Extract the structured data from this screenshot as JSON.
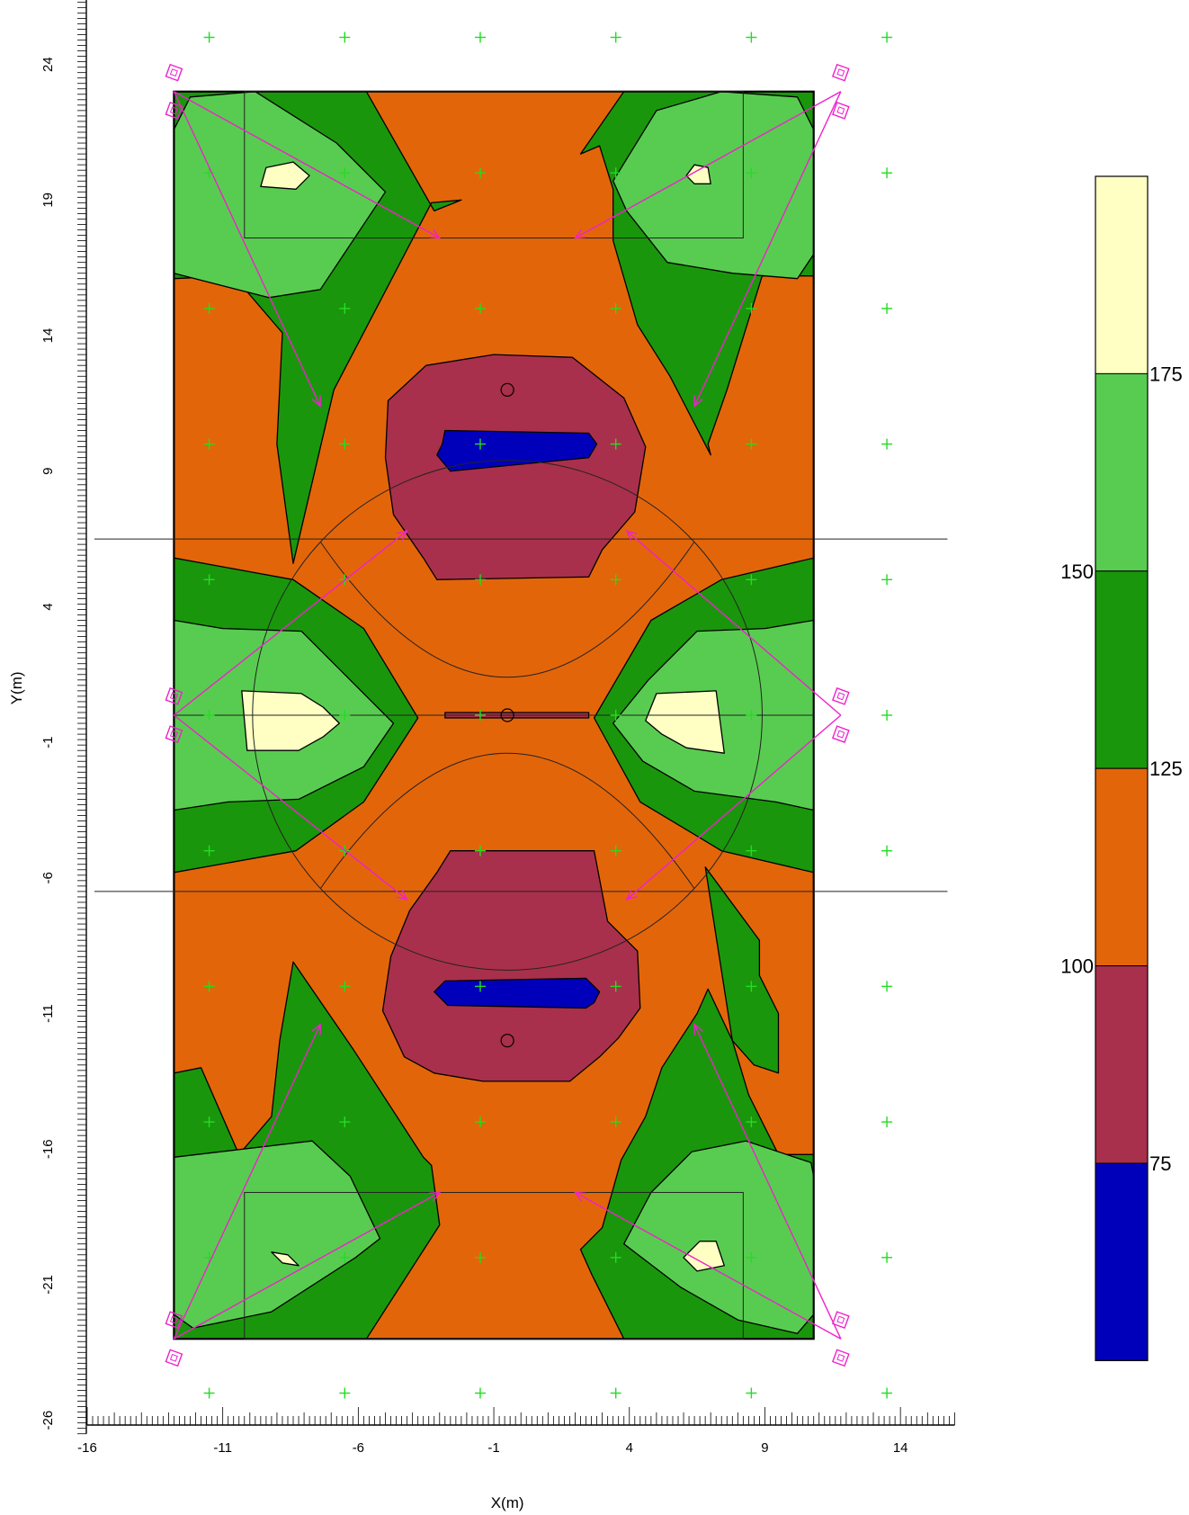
{
  "chart_data": {
    "type": "heatmap",
    "subtype": "filled-contour illuminance plot over sports field",
    "xlabel": "X(m)",
    "ylabel": "Y(m)",
    "xlim": [
      -16,
      16
    ],
    "ylim": [
      -26.5,
      26.5
    ],
    "x_ticks": [
      -16,
      -11,
      -6,
      -1,
      4,
      9,
      14
    ],
    "y_ticks": [
      24,
      19,
      14,
      9,
      4,
      -1,
      -6,
      -11,
      -16,
      -21,
      -26
    ],
    "field": {
      "x": [
        -12.8,
        10.8
      ],
      "y": [
        -23,
        23
      ]
    },
    "legend": {
      "placement": "right",
      "labels": [
        "175",
        "150",
        "125",
        "100",
        "75"
      ],
      "bands": [
        {
          "color": "#0000bb",
          "range": [
            50,
            75
          ]
        },
        {
          "color": "#a8304c",
          "range": [
            75,
            100
          ]
        },
        {
          "color": "#e3650a",
          "range": [
            100,
            125
          ]
        },
        {
          "color": "#1a960c",
          "range": [
            125,
            150
          ]
        },
        {
          "color": "#58cc50",
          "range": [
            150,
            175
          ]
        },
        {
          "color": "#ffffc4",
          "range": [
            175,
            200
          ]
        }
      ]
    },
    "contours": [
      {
        "level": 125,
        "color": "#1a960c",
        "polygons": [
          [
            [
              -12.8,
              23
            ],
            [
              -5.7,
              23
            ],
            [
              -3.2,
              18.6
            ],
            [
              -2.2,
              19
            ],
            [
              -3.3,
              18.9
            ],
            [
              -6.9,
              12
            ],
            [
              -8.4,
              5.6
            ],
            [
              -9,
              10
            ],
            [
              -8.8,
              14.1
            ],
            [
              -10.6,
              16.2
            ],
            [
              -12.8,
              16.1
            ]
          ],
          [
            [
              3.8,
              23
            ],
            [
              10.8,
              23
            ],
            [
              10.8,
              16.2
            ],
            [
              8.9,
              16.2
            ],
            [
              7.6,
              12
            ],
            [
              6.9,
              10
            ],
            [
              7,
              9.6
            ],
            [
              5.5,
              12.5
            ],
            [
              4.3,
              14.4
            ],
            [
              3.4,
              17.5
            ],
            [
              3.4,
              19.4
            ],
            [
              2.9,
              21
            ],
            [
              2.2,
              20.7
            ]
          ],
          [
            [
              -12.8,
              5.8
            ],
            [
              -8.4,
              5
            ],
            [
              -5.8,
              3.2
            ],
            [
              -3.8,
              -0.1
            ],
            [
              -5.8,
              -3.2
            ],
            [
              -8.3,
              -5
            ],
            [
              -12.8,
              -5.8
            ]
          ],
          [
            [
              10.8,
              5.8
            ],
            [
              7.4,
              5
            ],
            [
              4.8,
              3.5
            ],
            [
              2.7,
              -0.1
            ],
            [
              4.4,
              -3.2
            ],
            [
              7.4,
              -5
            ],
            [
              10.8,
              -5.8
            ]
          ],
          [
            [
              -12.8,
              -23
            ],
            [
              -5.7,
              -23
            ],
            [
              -3,
              -18.8
            ],
            [
              -3.3,
              -16.6
            ],
            [
              -3.6,
              -16.3
            ],
            [
              -6.2,
              -12.3
            ],
            [
              -8.4,
              -9.1
            ],
            [
              -8.9,
              -12
            ],
            [
              -9.2,
              -14.8
            ],
            [
              -10.4,
              -16.2
            ],
            [
              -11.8,
              -13
            ],
            [
              -12.8,
              -13.2
            ]
          ],
          [
            [
              3.8,
              -23
            ],
            [
              10.8,
              -23
            ],
            [
              10.8,
              -16.2
            ],
            [
              9.5,
              -16.2
            ],
            [
              8.4,
              -14
            ],
            [
              7.8,
              -12
            ],
            [
              6.9,
              -10.1
            ],
            [
              6.5,
              -11
            ],
            [
              5.2,
              -13
            ],
            [
              4.6,
              -14.8
            ],
            [
              3.7,
              -16.4
            ],
            [
              3,
              -18.9
            ],
            [
              2.2,
              -19.7
            ],
            [
              2.6,
              -20.6
            ]
          ],
          [
            [
              6.8,
              -5.6
            ],
            [
              8.8,
              -8.3
            ],
            [
              8.8,
              -9.6
            ],
            [
              9.5,
              -11
            ],
            [
              9.5,
              -13.2
            ],
            [
              8.6,
              -12.9
            ],
            [
              7.8,
              -12
            ]
          ]
        ]
      },
      {
        "level": 150,
        "color": "#58cc50",
        "polygons": [
          [
            [
              -12.8,
              21.6
            ],
            [
              -12.2,
              22.8
            ],
            [
              -9.8,
              23
            ],
            [
              -6.8,
              21.1
            ],
            [
              -5,
              19.3
            ],
            [
              -7.4,
              15.7
            ],
            [
              -9.3,
              15.4
            ],
            [
              -12.8,
              16.3
            ]
          ],
          [
            [
              10.8,
              21.6
            ],
            [
              10.2,
              22.8
            ],
            [
              7.4,
              23
            ],
            [
              5,
              22.3
            ],
            [
              3.4,
              19.7
            ],
            [
              3.9,
              18.6
            ],
            [
              5.4,
              16.7
            ],
            [
              7.8,
              16.3
            ],
            [
              10.2,
              16.1
            ],
            [
              10.8,
              17
            ]
          ],
          [
            [
              -12.8,
              3.5
            ],
            [
              -11,
              3.2
            ],
            [
              -8.1,
              3.1
            ],
            [
              -5.9,
              0.9
            ],
            [
              -4.7,
              -0.3
            ],
            [
              -5.8,
              -1.9
            ],
            [
              -8.2,
              -3.1
            ],
            [
              -10.8,
              -3.2
            ],
            [
              -12.8,
              -3.5
            ]
          ],
          [
            [
              10.8,
              3.5
            ],
            [
              9,
              3.2
            ],
            [
              6.5,
              3.1
            ],
            [
              4.7,
              1.3
            ],
            [
              3.4,
              -0.3
            ],
            [
              4.5,
              -1.7
            ],
            [
              6.4,
              -2.8
            ],
            [
              9.4,
              -3.2
            ],
            [
              10.8,
              -3.5
            ]
          ],
          [
            [
              -12.8,
              -22.1
            ],
            [
              -12.1,
              -22.6
            ],
            [
              -9.2,
              -22
            ],
            [
              -6.1,
              -20
            ],
            [
              -5.2,
              -19.3
            ],
            [
              -6.3,
              -17
            ],
            [
              -7.7,
              -15.7
            ],
            [
              -12.8,
              -16.3
            ]
          ],
          [
            [
              10.8,
              -22.1
            ],
            [
              10.2,
              -22.8
            ],
            [
              8,
              -22.3
            ],
            [
              5.9,
              -21.1
            ],
            [
              3.8,
              -19.5
            ],
            [
              4.8,
              -17.6
            ],
            [
              6.3,
              -16.1
            ],
            [
              8.3,
              -15.7
            ],
            [
              10.7,
              -16.5
            ],
            [
              10.8,
              -17
            ]
          ]
        ]
      },
      {
        "level": 175,
        "color": "#ffffc4",
        "polygons": [
          [
            [
              -9.6,
              19.5
            ],
            [
              -9.4,
              20.2
            ],
            [
              -8.4,
              20.4
            ],
            [
              -7.8,
              19.9
            ],
            [
              -8.3,
              19.4
            ]
          ],
          [
            [
              6.1,
              19.9
            ],
            [
              6.4,
              20.3
            ],
            [
              6.9,
              20.2
            ],
            [
              7,
              19.6
            ],
            [
              6.4,
              19.6
            ]
          ],
          [
            [
              -10.3,
              0.9
            ],
            [
              -8.1,
              0.8
            ],
            [
              -7.3,
              0.3
            ],
            [
              -6.7,
              -0.3
            ],
            [
              -7.3,
              -0.8
            ],
            [
              -8.2,
              -1.3
            ],
            [
              -10.1,
              -1.3
            ]
          ],
          [
            [
              5,
              0.8
            ],
            [
              7.2,
              0.9
            ],
            [
              7.5,
              -1.4
            ],
            [
              6.1,
              -1.2
            ],
            [
              5.2,
              -0.7
            ],
            [
              4.6,
              -0.2
            ]
          ],
          [
            [
              -9.2,
              -19.8
            ],
            [
              -8.8,
              -20.2
            ],
            [
              -8.2,
              -20.3
            ],
            [
              -8.6,
              -19.9
            ]
          ],
          [
            [
              6.6,
              -19.4
            ],
            [
              7.2,
              -19.4
            ],
            [
              7.5,
              -20.3
            ],
            [
              6.5,
              -20.5
            ],
            [
              6,
              -20
            ]
          ]
        ]
      },
      {
        "level": 100,
        "color": "#a8304c",
        "polygons": [
          [
            [
              -4.9,
              11.6
            ],
            [
              -3.5,
              12.9
            ],
            [
              -1,
              13.3
            ],
            [
              1.9,
              13.2
            ],
            [
              3.8,
              11.7
            ],
            [
              4.6,
              9.9
            ],
            [
              4.2,
              7.5
            ],
            [
              3,
              6.1
            ],
            [
              2.5,
              5.1
            ],
            [
              -3.1,
              5
            ],
            [
              -3.6,
              5.8
            ],
            [
              -4.7,
              7.4
            ],
            [
              -5,
              9.5
            ]
          ],
          [
            [
              -4.8,
              -8.9
            ],
            [
              -5.1,
              -10.9
            ],
            [
              -4.3,
              -12.6
            ],
            [
              -3.2,
              -13.2
            ],
            [
              -1.4,
              -13.5
            ],
            [
              1.8,
              -13.5
            ],
            [
              2.9,
              -12.6
            ],
            [
              3.6,
              -11.9
            ],
            [
              4.4,
              -10.8
            ],
            [
              4.3,
              -8.7
            ],
            [
              3.2,
              -7.6
            ],
            [
              2.7,
              -5
            ],
            [
              -2.6,
              -5
            ],
            [
              -3.1,
              -5.8
            ],
            [
              -4.1,
              -7.2
            ]
          ],
          [
            [
              -2.8,
              -0.1
            ],
            [
              2.5,
              -0.1
            ],
            [
              2.5,
              0.1
            ],
            [
              -2.8,
              0.1
            ]
          ]
        ]
      },
      {
        "level": 75,
        "color": "#0000bb",
        "polygons": [
          [
            [
              -2.8,
              10.5
            ],
            [
              2.5,
              10.4
            ],
            [
              2.8,
              10
            ],
            [
              2.5,
              9.5
            ],
            [
              -2.6,
              9
            ],
            [
              -3.1,
              9.6
            ],
            [
              -2.9,
              10
            ]
          ],
          [
            [
              -2.8,
              -9.8
            ],
            [
              2.4,
              -9.7
            ],
            [
              2.9,
              -10.2
            ],
            [
              2.7,
              -10.6
            ],
            [
              2.4,
              -10.8
            ],
            [
              -2.7,
              -10.7
            ],
            [
              -3.2,
              -10.2
            ]
          ]
        ]
      }
    ],
    "calc_points_x": [
      -11.5,
      -6.5,
      -1.5,
      3.5,
      8.5,
      13.5
    ],
    "calc_points_y": [
      25,
      20,
      15,
      10,
      5,
      0,
      -5,
      -10,
      -15,
      -20,
      -25
    ],
    "markings": {
      "lines_y": [
        6.5,
        -6.5
      ],
      "center_line_y": 0,
      "spots": [
        [
          -0.5,
          12
        ],
        [
          -0.5,
          0
        ],
        [
          -0.5,
          -12
        ]
      ],
      "goal_boxes": [
        {
          "x": [
            -10.2,
            8.2
          ],
          "y": [
            17.6,
            23
          ]
        },
        {
          "x": [
            -10.2,
            8.2
          ],
          "y": [
            -23,
            -17.6
          ]
        }
      ]
    },
    "luminaires": [
      {
        "pos": [
          -12.8,
          23
        ],
        "aims": [
          [
            -3,
            17.6
          ],
          [
            -7.4,
            11.4
          ]
        ]
      },
      {
        "pos": [
          11.8,
          23
        ],
        "aims": [
          [
            2,
            17.6
          ],
          [
            6.4,
            11.4
          ]
        ]
      },
      {
        "pos": [
          -12.8,
          0
        ],
        "aims": [
          [
            -4.2,
            6.8
          ],
          [
            -4.2,
            -6.8
          ]
        ]
      },
      {
        "pos": [
          11.8,
          0
        ],
        "aims": [
          [
            3.9,
            6.8
          ],
          [
            3.9,
            -6.8
          ]
        ]
      },
      {
        "pos": [
          -12.8,
          -23
        ],
        "aims": [
          [
            -3,
            -17.6
          ],
          [
            -7.4,
            -11.4
          ]
        ]
      },
      {
        "pos": [
          11.8,
          -23
        ],
        "aims": [
          [
            2,
            -17.6
          ],
          [
            6.4,
            -11.4
          ]
        ]
      }
    ]
  }
}
